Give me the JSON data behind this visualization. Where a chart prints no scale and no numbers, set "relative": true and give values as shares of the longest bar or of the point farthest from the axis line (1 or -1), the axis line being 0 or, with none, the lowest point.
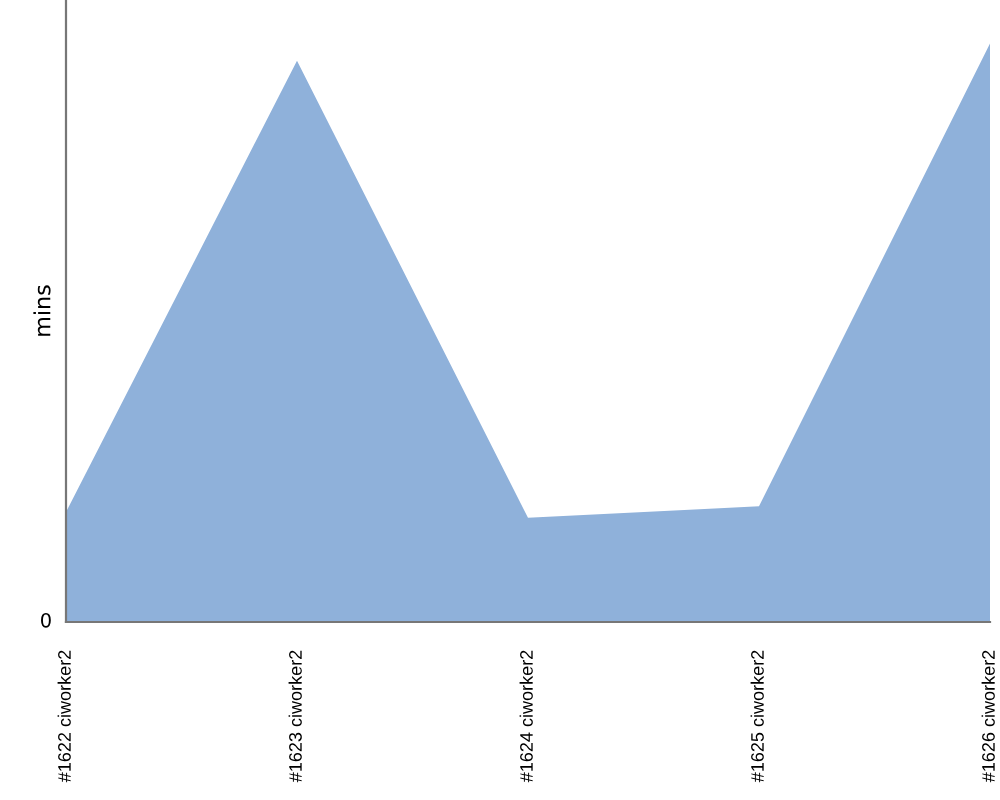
{
  "chart_data": {
    "type": "area",
    "relative": true,
    "ylabel": "mins",
    "categories": [
      "#1622 ciworker2",
      "#1623 ciworker2",
      "#1624 ciworker2",
      "#1625 ciworker2",
      "#1626 ciworker2"
    ],
    "series": [
      {
        "color": "#8fb1da",
        "values": [
          0.19,
          0.97,
          0.18,
          0.2,
          1.0
        ]
      }
    ],
    "annotations": [
      "0"
    ],
    "grid": false,
    "legend": false
  }
}
